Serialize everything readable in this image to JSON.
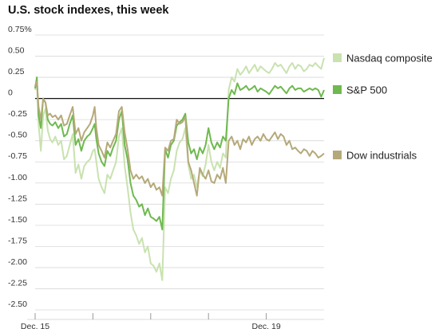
{
  "chart_data": {
    "type": "line",
    "title": "U.S. stock indexes, this week",
    "xlabel": "",
    "ylabel": "",
    "ylim": [
      -2.5,
      0.75
    ],
    "y_ticks": [
      0.75,
      0.5,
      0.25,
      0,
      -0.25,
      -0.5,
      -0.75,
      -1.0,
      -1.25,
      -1.5,
      -1.75,
      -2.0,
      -2.25,
      -2.5
    ],
    "y_tick_labels": [
      "0.75%",
      "0.50",
      "0.25",
      "0",
      "-0.25",
      "-0.50",
      "-0.75",
      "-1.00",
      "-1.25",
      "-1.50",
      "-1.75",
      "-2.00",
      "-2.25",
      "-2.50"
    ],
    "x_days": [
      "Dec. 15",
      "",
      "",
      "",
      "Dec. 19"
    ],
    "legend_placement": "right",
    "grid": "horizontal",
    "series": [
      {
        "name": "Nasdaq composite",
        "color": "#c9e2b0",
        "x": [
          0,
          0.03,
          0.06,
          0.1,
          0.14,
          0.18,
          0.22,
          0.26,
          0.3,
          0.35,
          0.4,
          0.45,
          0.5,
          0.55,
          0.6,
          0.65,
          0.7,
          0.75,
          0.8,
          0.85,
          0.9,
          0.95,
          1.0,
          1.03,
          1.06,
          1.1,
          1.15,
          1.2,
          1.25,
          1.3,
          1.35,
          1.4,
          1.45,
          1.5,
          1.55,
          1.6,
          1.65,
          1.7,
          1.75,
          1.8,
          1.85,
          1.9,
          1.95,
          2.0,
          2.05,
          2.1,
          2.15,
          2.2,
          2.25,
          2.3,
          2.35,
          2.4,
          2.45,
          2.5,
          2.55,
          2.6,
          2.65,
          2.7,
          2.75,
          2.8,
          2.85,
          2.9,
          2.95,
          3.0,
          3.05,
          3.1,
          3.15,
          3.2,
          3.25,
          3.3,
          3.35,
          3.4,
          3.45,
          3.5,
          3.55,
          3.6,
          3.65,
          3.7,
          3.75,
          3.8,
          3.85,
          3.9,
          3.95,
          4.0,
          4.05,
          4.1,
          4.15,
          4.2,
          4.25,
          4.3,
          4.35,
          4.4,
          4.45,
          4.5,
          4.55,
          4.6,
          4.65,
          4.7,
          4.75,
          4.8,
          4.85,
          4.9,
          4.95,
          5.0
        ],
        "values": [
          0.1,
          0.22,
          -0.3,
          -0.62,
          -0.2,
          -0.12,
          -0.38,
          -0.48,
          -0.52,
          -0.45,
          -0.55,
          -0.5,
          -0.72,
          -0.68,
          -0.55,
          -0.42,
          -0.88,
          -0.78,
          -0.95,
          -0.8,
          -0.75,
          -0.72,
          -0.62,
          -0.6,
          -0.75,
          -0.95,
          -1.05,
          -1.12,
          -0.9,
          -0.95,
          -0.85,
          -0.75,
          -0.45,
          -0.35,
          -0.8,
          -1.05,
          -1.35,
          -1.55,
          -1.62,
          -1.72,
          -1.65,
          -1.82,
          -1.75,
          -1.95,
          -1.98,
          -2.05,
          -1.95,
          -2.15,
          -1.05,
          -1.12,
          -0.95,
          -0.85,
          -0.62,
          -0.52,
          -0.48,
          -0.35,
          -0.78,
          -0.95,
          -0.9,
          -1.05,
          -0.85,
          -0.92,
          -0.78,
          -0.55,
          -0.75,
          -0.85,
          -0.75,
          -0.82,
          -0.65,
          -0.7,
          0.1,
          0.25,
          0.2,
          0.35,
          0.28,
          0.32,
          0.38,
          0.3,
          0.35,
          0.4,
          0.32,
          0.38,
          0.35,
          0.32,
          0.3,
          0.35,
          0.42,
          0.38,
          0.4,
          0.35,
          0.3,
          0.38,
          0.42,
          0.35,
          0.4,
          0.38,
          0.32,
          0.35,
          0.4,
          0.38,
          0.42,
          0.38,
          0.35,
          0.48
        ]
      },
      {
        "name": "S&P 500",
        "color": "#6fb94f",
        "x": [
          0,
          0.03,
          0.06,
          0.1,
          0.14,
          0.18,
          0.22,
          0.26,
          0.3,
          0.35,
          0.4,
          0.45,
          0.5,
          0.55,
          0.6,
          0.65,
          0.7,
          0.75,
          0.8,
          0.85,
          0.9,
          0.95,
          1.0,
          1.03,
          1.06,
          1.1,
          1.15,
          1.2,
          1.25,
          1.3,
          1.35,
          1.4,
          1.45,
          1.5,
          1.55,
          1.6,
          1.65,
          1.7,
          1.75,
          1.8,
          1.85,
          1.9,
          1.95,
          2.0,
          2.05,
          2.1,
          2.15,
          2.2,
          2.25,
          2.3,
          2.35,
          2.4,
          2.45,
          2.5,
          2.55,
          2.6,
          2.65,
          2.7,
          2.75,
          2.8,
          2.85,
          2.9,
          2.95,
          3.0,
          3.05,
          3.1,
          3.15,
          3.2,
          3.25,
          3.3,
          3.35,
          3.4,
          3.45,
          3.5,
          3.55,
          3.6,
          3.65,
          3.7,
          3.75,
          3.8,
          3.85,
          3.9,
          3.95,
          4.0,
          4.05,
          4.1,
          4.15,
          4.2,
          4.25,
          4.3,
          4.35,
          4.4,
          4.45,
          4.5,
          4.55,
          4.6,
          4.65,
          4.7,
          4.75,
          4.8,
          4.85,
          4.9,
          4.95,
          5.0
        ],
        "values": [
          0.12,
          0.25,
          -0.2,
          -0.35,
          0.0,
          -0.05,
          -0.25,
          -0.3,
          -0.32,
          -0.28,
          -0.35,
          -0.3,
          -0.45,
          -0.42,
          -0.3,
          -0.2,
          -0.55,
          -0.48,
          -0.62,
          -0.5,
          -0.45,
          -0.42,
          -0.35,
          -0.3,
          -0.48,
          -0.65,
          -0.75,
          -0.8,
          -0.62,
          -0.68,
          -0.58,
          -0.5,
          -0.25,
          -0.15,
          -0.55,
          -0.72,
          -1.0,
          -1.15,
          -1.2,
          -1.28,
          -1.25,
          -1.38,
          -1.3,
          -1.4,
          -1.42,
          -1.45,
          -1.4,
          -1.55,
          -0.6,
          -0.7,
          -0.55,
          -0.5,
          -0.32,
          -0.28,
          -0.25,
          -0.18,
          -0.52,
          -0.65,
          -0.6,
          -0.72,
          -0.58,
          -0.65,
          -0.55,
          -0.35,
          -0.52,
          -0.6,
          -0.52,
          -0.58,
          -0.45,
          -0.5,
          0.0,
          0.1,
          0.05,
          0.18,
          0.1,
          0.12,
          0.15,
          0.1,
          0.12,
          0.15,
          0.08,
          0.12,
          0.1,
          0.08,
          0.05,
          0.1,
          0.15,
          0.12,
          0.14,
          0.1,
          0.06,
          0.12,
          0.15,
          0.1,
          0.12,
          0.12,
          0.08,
          0.1,
          0.12,
          0.1,
          0.12,
          0.1,
          0.02,
          0.1
        ]
      },
      {
        "name": "Dow industrials",
        "color": "#b5a979",
        "x": [
          0,
          0.03,
          0.06,
          0.1,
          0.14,
          0.18,
          0.22,
          0.26,
          0.3,
          0.35,
          0.4,
          0.45,
          0.5,
          0.55,
          0.6,
          0.65,
          0.7,
          0.75,
          0.8,
          0.85,
          0.9,
          0.95,
          1.0,
          1.03,
          1.06,
          1.1,
          1.15,
          1.2,
          1.25,
          1.3,
          1.35,
          1.4,
          1.45,
          1.5,
          1.55,
          1.6,
          1.65,
          1.7,
          1.75,
          1.8,
          1.85,
          1.9,
          1.95,
          2.0,
          2.05,
          2.1,
          2.15,
          2.2,
          2.25,
          2.3,
          2.35,
          2.4,
          2.45,
          2.5,
          2.55,
          2.6,
          2.65,
          2.7,
          2.75,
          2.8,
          2.85,
          2.9,
          2.95,
          3.0,
          3.05,
          3.1,
          3.15,
          3.2,
          3.25,
          3.3,
          3.35,
          3.4,
          3.45,
          3.5,
          3.55,
          3.6,
          3.65,
          3.7,
          3.75,
          3.8,
          3.85,
          3.9,
          3.95,
          4.0,
          4.05,
          4.1,
          4.15,
          4.2,
          4.25,
          4.3,
          4.35,
          4.4,
          4.45,
          4.5,
          4.55,
          4.6,
          4.65,
          4.7,
          4.75,
          4.8,
          4.85,
          4.9,
          4.95,
          5.0
        ],
        "values": [
          0.15,
          0.2,
          -0.1,
          -0.25,
          0.0,
          -0.05,
          -0.2,
          -0.18,
          -0.22,
          -0.2,
          -0.25,
          -0.2,
          -0.32,
          -0.3,
          -0.2,
          -0.1,
          -0.42,
          -0.35,
          -0.5,
          -0.4,
          -0.35,
          -0.3,
          -0.2,
          -0.1,
          -0.35,
          -0.55,
          -0.62,
          -0.7,
          -0.52,
          -0.58,
          -0.5,
          -0.42,
          -0.15,
          -0.1,
          -0.4,
          -0.6,
          -0.85,
          -0.95,
          -0.9,
          -0.95,
          -0.92,
          -1.0,
          -0.95,
          -1.05,
          -1.0,
          -1.08,
          -1.05,
          -1.15,
          -0.58,
          -0.62,
          -0.5,
          -0.48,
          -0.25,
          -0.3,
          -0.28,
          -0.22,
          -0.75,
          -0.85,
          -1.0,
          -1.15,
          -0.82,
          -0.9,
          -0.95,
          -0.85,
          -0.98,
          -1.0,
          -0.9,
          -0.95,
          -0.82,
          -1.0,
          -0.5,
          -0.45,
          -0.55,
          -0.5,
          -0.6,
          -0.48,
          -0.52,
          -0.45,
          -0.55,
          -0.48,
          -0.45,
          -0.5,
          -0.42,
          -0.48,
          -0.5,
          -0.45,
          -0.4,
          -0.48,
          -0.42,
          -0.45,
          -0.55,
          -0.5,
          -0.6,
          -0.58,
          -0.62,
          -0.65,
          -0.6,
          -0.62,
          -0.68,
          -0.62,
          -0.65,
          -0.7,
          -0.68,
          -0.65
        ]
      }
    ]
  }
}
